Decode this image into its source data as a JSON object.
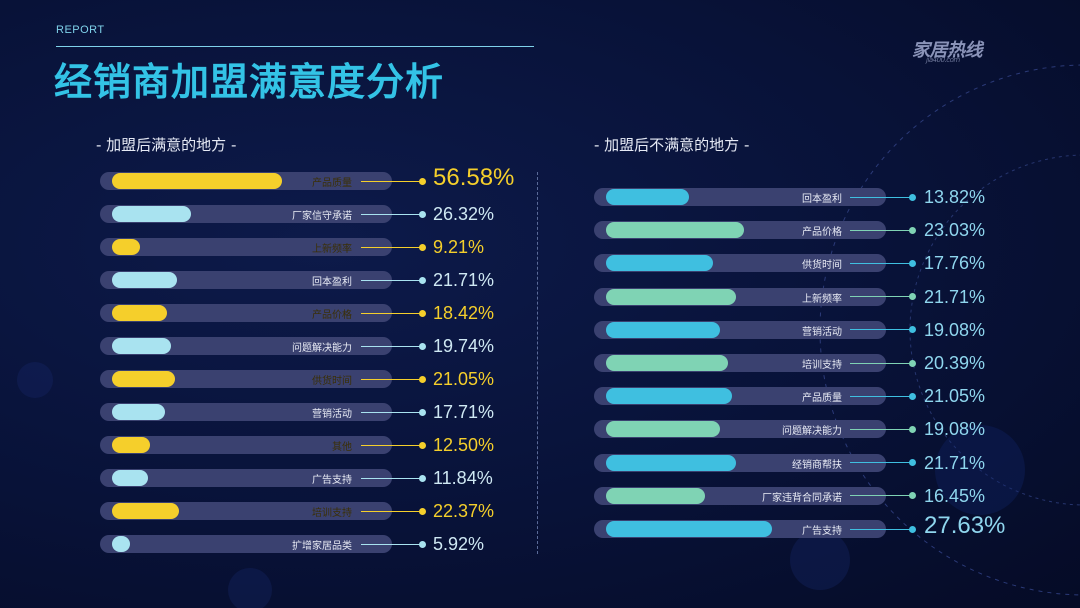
{
  "header": {
    "report_label": "REPORT",
    "title": "经销商加盟满意度分析",
    "logo_text": "家居热线",
    "logo_sub": "jia400.com"
  },
  "colors": {
    "title": "#33c3e6",
    "report": "#7fd2ea",
    "left_fill_odd": "#f5cf2b",
    "left_fill_even": "#a9e3f0",
    "left_value_odd": "#f5cf2b",
    "left_value_even": "#cfe8f3",
    "right_fill_odd": "#3fbfe0",
    "right_fill_even": "#7fd3b4",
    "right_value": "#8fd6ee"
  },
  "chart_data": [
    {
      "type": "bar",
      "title": "- 加盟后满意的地方 -",
      "categories": [
        "产品质量",
        "厂家信守承诺",
        "上新频率",
        "回本盈利",
        "产品价格",
        "问题解决能力",
        "供货时间",
        "营销活动",
        "其他",
        "广告支持",
        "培训支持",
        "扩增家居品类"
      ],
      "values": [
        56.58,
        26.32,
        9.21,
        21.71,
        18.42,
        19.74,
        21.05,
        17.71,
        12.5,
        11.84,
        22.37,
        5.92
      ],
      "value_labels": [
        "56.58%",
        "26.32%",
        "9.21%",
        "21.71%",
        "18.42%",
        "19.74%",
        "21.05%",
        "17.71%",
        "12.50%",
        "11.84%",
        "22.37%",
        "5.92%"
      ],
      "unit": "%",
      "xlim": [
        0,
        100
      ]
    },
    {
      "type": "bar",
      "title": "- 加盟后不满意的地方 -",
      "categories": [
        "回本盈利",
        "产品价格",
        "供货时间",
        "上新频率",
        "营销活动",
        "培训支持",
        "产品质量",
        "问题解决能力",
        "经销商帮扶",
        "厂家违背合同承诺",
        "广告支持"
      ],
      "values": [
        13.82,
        23.03,
        17.76,
        21.71,
        19.08,
        20.39,
        21.05,
        19.08,
        21.71,
        16.45,
        27.63
      ],
      "value_labels": [
        "13.82%",
        "23.03%",
        "17.76%",
        "21.71%",
        "19.08%",
        "20.39%",
        "21.05%",
        "19.08%",
        "21.71%",
        "16.45%",
        "27.63%"
      ],
      "unit": "%",
      "xlim": [
        0,
        100
      ]
    }
  ]
}
